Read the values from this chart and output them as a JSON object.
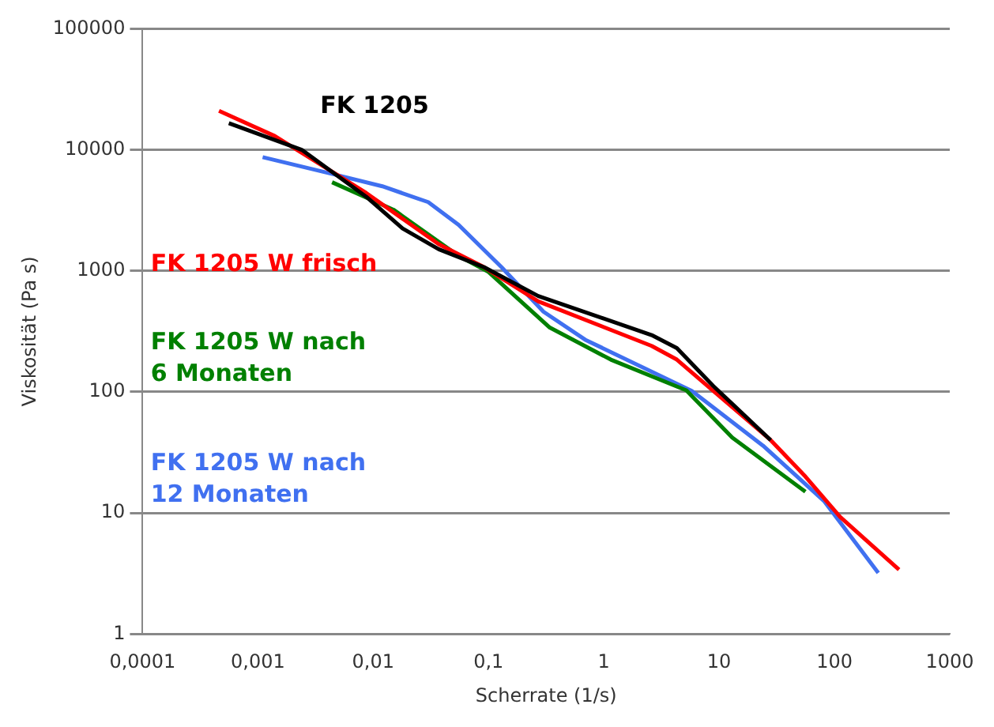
{
  "chart_data": {
    "type": "line",
    "xlabel": "Scherrate (1/s)",
    "ylabel": "Viskosität (Pa s)",
    "log": "xy",
    "grid": "y",
    "legend": false,
    "marker": "none",
    "line_style": "solid",
    "xlim": [
      0.0001,
      1000
    ],
    "xticks": [
      {
        "value": 0.0001,
        "label": "0,0001"
      },
      {
        "value": 0.001,
        "label": "0,001"
      },
      {
        "value": 0.01,
        "label": "0,01"
      },
      {
        "value": 0.1,
        "label": "0,1"
      },
      1,
      10,
      100,
      1000
    ],
    "ylim": [
      1,
      100000
    ],
    "yticks": [
      1,
      10,
      100,
      1000,
      10000,
      100000
    ],
    "series": [
      {
        "name": "FK 1205",
        "color": "#000000",
        "x": [
          0.00056,
          0.0024,
          0.0087,
          0.018,
          0.037,
          0.092,
          0.27,
          2.6,
          4.3,
          8.9,
          28
        ],
        "values": [
          16600,
          10000,
          4100,
          2240,
          1510,
          1070,
          620,
          295,
          230,
          112,
          40
        ]
      },
      {
        "name": "FK 1205 W frisch",
        "color": "#ff0000",
        "x": [
          0.00046,
          0.0014,
          0.0087,
          0.037,
          0.092,
          0.27,
          2.6,
          4.3,
          28,
          56,
          112,
          363
        ],
        "values": [
          21000,
          13000,
          4400,
          1660,
          1070,
          560,
          240,
          185,
          40,
          20,
          9.3,
          3.4
        ]
      },
      {
        "name": "FK 1205 W nach 6 Monaten",
        "color": "#008000",
        "x": [
          0.0044,
          0.015,
          0.055,
          0.1,
          0.34,
          1.15,
          5.2,
          13,
          56
        ],
        "values": [
          5400,
          3200,
          1330,
          980,
          340,
          185,
          103,
          42,
          15
        ]
      },
      {
        "name": "FK 1205 W nach 12 Monaten",
        "color": "#4070f0",
        "x": [
          0.0011,
          0.0048,
          0.012,
          0.03,
          0.055,
          0.13,
          0.3,
          0.69,
          5.8,
          24,
          81,
          240
        ],
        "values": [
          8700,
          6200,
          5000,
          3700,
          2400,
          1070,
          460,
          270,
          102,
          36,
          12.6,
          3.2
        ]
      }
    ]
  }
}
